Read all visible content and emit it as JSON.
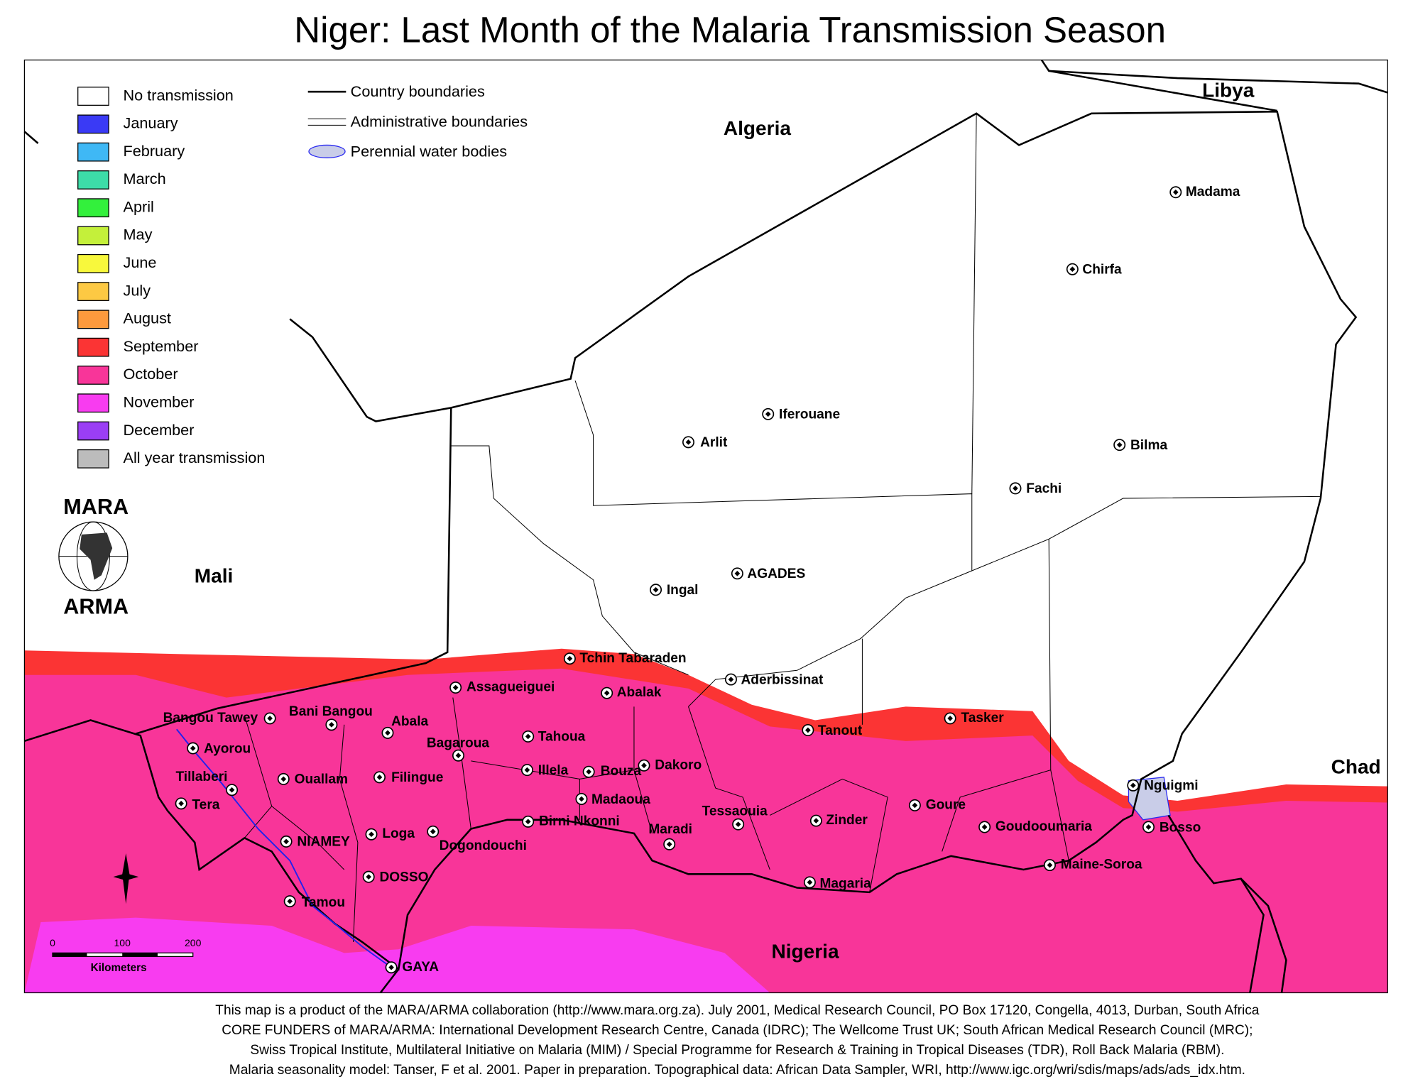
{
  "title": "Niger: Last Month of the Malaria Transmission Season",
  "legend": [
    {
      "label": "No transmission",
      "color": "#ffffff"
    },
    {
      "label": "January",
      "color": "#3a3af5"
    },
    {
      "label": "February",
      "color": "#3fb8f5"
    },
    {
      "label": "March",
      "color": "#3ddca8"
    },
    {
      "label": "April",
      "color": "#33f03c"
    },
    {
      "label": "May",
      "color": "#c4f03a"
    },
    {
      "label": "June",
      "color": "#f8f83c"
    },
    {
      "label": "July",
      "color": "#fdc943"
    },
    {
      "label": "August",
      "color": "#fd9a3d"
    },
    {
      "label": "September",
      "color": "#fb3434"
    },
    {
      "label": "October",
      "color": "#f83599"
    },
    {
      "label": "November",
      "color": "#f83cf0"
    },
    {
      "label": "December",
      "color": "#9b3ef5"
    },
    {
      "label": "All year transmission",
      "color": "#bcbcbc"
    }
  ],
  "line_legend": [
    "Country boundaries",
    "Administrative boundaries",
    "Perennial water bodies"
  ],
  "logo": {
    "top": "MARA",
    "bottom": "ARMA"
  },
  "scale_bar": {
    "ticks": [
      0,
      100,
      200
    ],
    "unit": "Kilometers"
  },
  "countries": [
    "Algeria",
    "Libya",
    "Mali",
    "Chad",
    "Nigeria"
  ],
  "towns": [
    "Madama",
    "Chirfa",
    "Iferouane",
    "Arlit",
    "Bilma",
    "Fachi",
    "Ingal",
    "AGADES",
    "Tchin Tabaraden",
    "Aderbissinat",
    "Assagueiguei",
    "Abalak",
    "Tanout",
    "Tasker",
    "Bangou Tawey",
    "Bani Bangou",
    "Abala",
    "Ayorou",
    "Tahoua",
    "Bagaroua",
    "Dakoro",
    "Illela",
    "Bouza",
    "Tillaberi",
    "Ouallam",
    "Filingue",
    "Nguigmi",
    "Madaoua",
    "Tera",
    "Goure",
    "Birni Nkonni",
    "Tessaouia",
    "Zinder",
    "Goudooumaria",
    "Bosso",
    "Maradi",
    "Loga",
    "Dogondouchi",
    "NIAMEY",
    "DOSSO",
    "Magaria",
    "Maine-Soroa",
    "Tamou",
    "GAYA"
  ],
  "footer": [
    "This map is a product of the MARA/ARMA collaboration (http://www.mara.org.za).  July 2001, Medical Research Council, PO Box 17120, Congella, 4013, Durban, South Africa",
    "CORE FUNDERS of MARA/ARMA: International Development Research Centre, Canada (IDRC); The Wellcome Trust UK; South African Medical Research Council (MRC);",
    "Swiss Tropical Institute, Multilateral Initiative on Malaria (MIM) / Special Programme for Research & Training in Tropical Diseases (TDR), Roll Back Malaria (RBM).",
    "Malaria seasonality model: Tanser, F et al. 2001. Paper in preparation.    Topographical data: African Data Sampler, WRI, http://www.igc.org/wri/sdis/maps/ads/ads_idx.htm."
  ]
}
